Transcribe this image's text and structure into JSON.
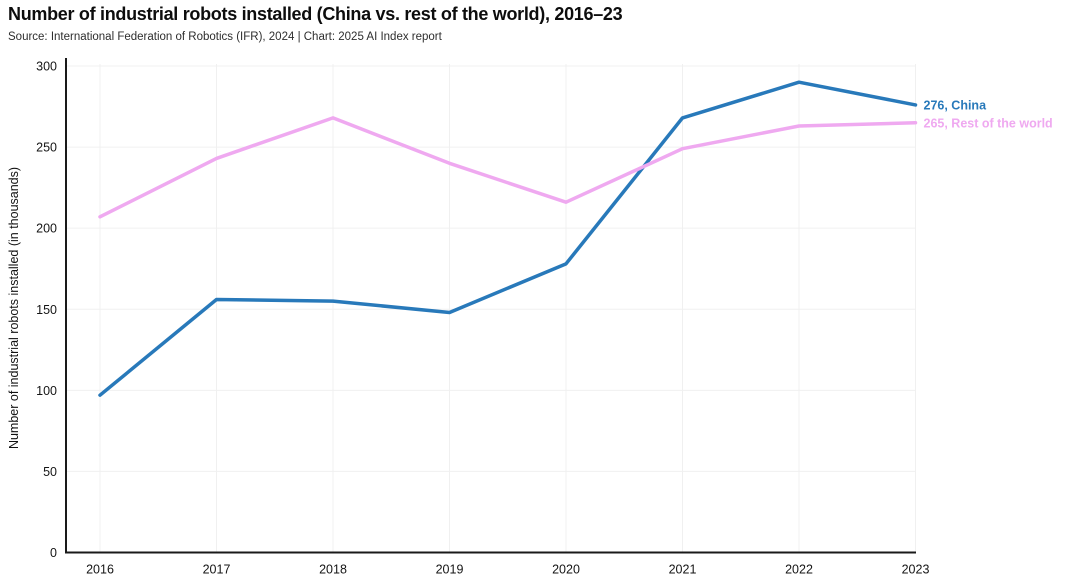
{
  "chart_data": {
    "type": "line",
    "title": "Number of industrial robots installed (China vs. rest of the world), 2016–23",
    "source": "Source: International Federation of Robotics (IFR), 2024 | Chart: 2025 AI Index report",
    "ylabel": "Number of industrial robots installed (in thousands)",
    "x_labels": [
      "2016",
      "2017",
      "2018",
      "2019",
      "2020",
      "2021",
      "2022",
      "2023"
    ],
    "yticks": [
      0,
      50,
      100,
      150,
      200,
      250,
      300
    ],
    "ylim": [
      0,
      300
    ],
    "grid": true,
    "legend_position": "line-end-labels",
    "axis_color": "#1a1a1a",
    "grid_color": "#f0f0f0",
    "tick_label_color": "#151515",
    "series": [
      {
        "name": "China",
        "color": "#2879BA",
        "values": [
          97,
          156,
          155,
          148,
          178,
          268,
          290,
          276
        ],
        "end_label": "276, China"
      },
      {
        "name": "Rest of the world",
        "color": "#EFA9F0",
        "values": [
          207,
          243,
          268,
          240,
          216,
          249,
          263,
          265
        ],
        "end_label": "265, Rest of the world"
      }
    ]
  }
}
